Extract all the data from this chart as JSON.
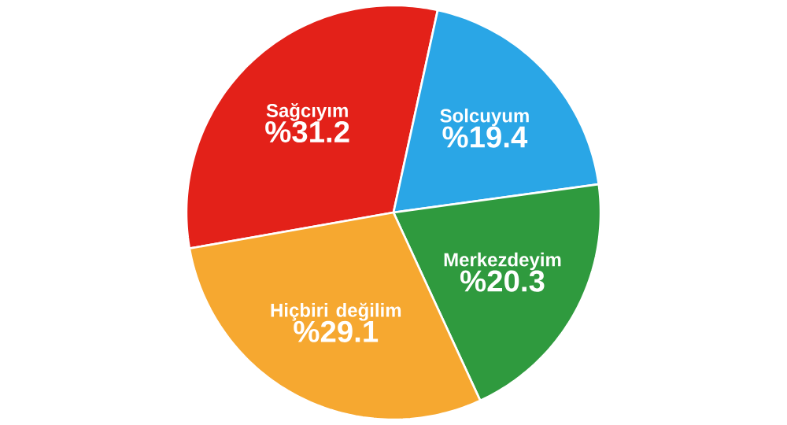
{
  "chart_data": {
    "type": "pie",
    "categories": [
      "Sağcıyım",
      "Solcuyum",
      "Merkezdeyim",
      "Hiçbiri değilim"
    ],
    "values": [
      31.2,
      19.4,
      20.3,
      29.1
    ],
    "value_labels": [
      "%31.2",
      "%19.4",
      "%20.3",
      "%29.1"
    ],
    "colors": [
      "#e32119",
      "#2aa6e6",
      "#2f9a3e",
      "#f6a830"
    ]
  }
}
